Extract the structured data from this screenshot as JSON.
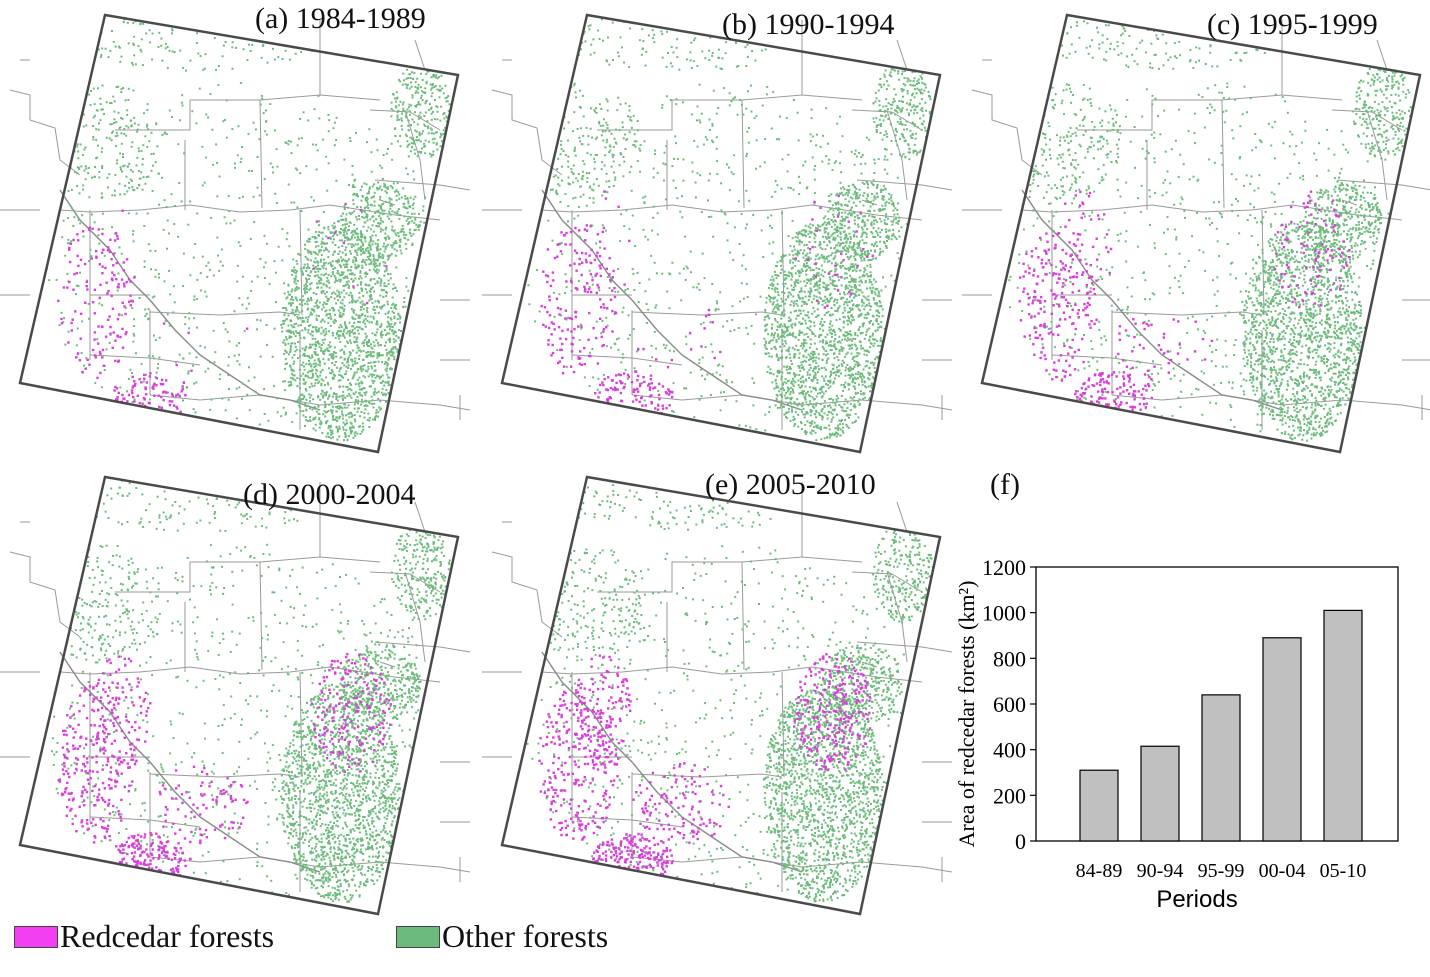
{
  "panels": [
    {
      "id": "a",
      "label": "(a) 1984-1989",
      "redcedar_level": 0.2
    },
    {
      "id": "b",
      "label": "(b) 1990-1994",
      "redcedar_level": 0.35
    },
    {
      "id": "c",
      "label": "(c) 1995-1999",
      "redcedar_level": 0.6
    },
    {
      "id": "d",
      "label": "(d) 2000-2004",
      "redcedar_level": 0.85
    },
    {
      "id": "e",
      "label": "(e) 2005-2010",
      "redcedar_level": 1.0
    }
  ],
  "chart_label": "(f)",
  "legend": [
    {
      "label": "Redcedar forests",
      "color": "#f13ff1"
    },
    {
      "label": "Other forests",
      "color": "#6dbb7c"
    }
  ],
  "colors": {
    "redcedar": "#d93fd9",
    "other": "#6dbb7c",
    "boundary": "#9a9a9a",
    "frame": "#4a4a4a",
    "bar_fill": "#c0c0c0"
  },
  "chart_data": {
    "type": "bar",
    "categories": [
      "84-89",
      "90-94",
      "95-99",
      "00-04",
      "05-10"
    ],
    "values": [
      310,
      415,
      640,
      890,
      1010
    ],
    "xlabel": "Periods",
    "ylabel": "Area of redcedar forests (km²)",
    "ylim": [
      0,
      1200
    ],
    "yticks": [
      0,
      200,
      400,
      600,
      800,
      1000,
      1200
    ],
    "grid": false
  }
}
